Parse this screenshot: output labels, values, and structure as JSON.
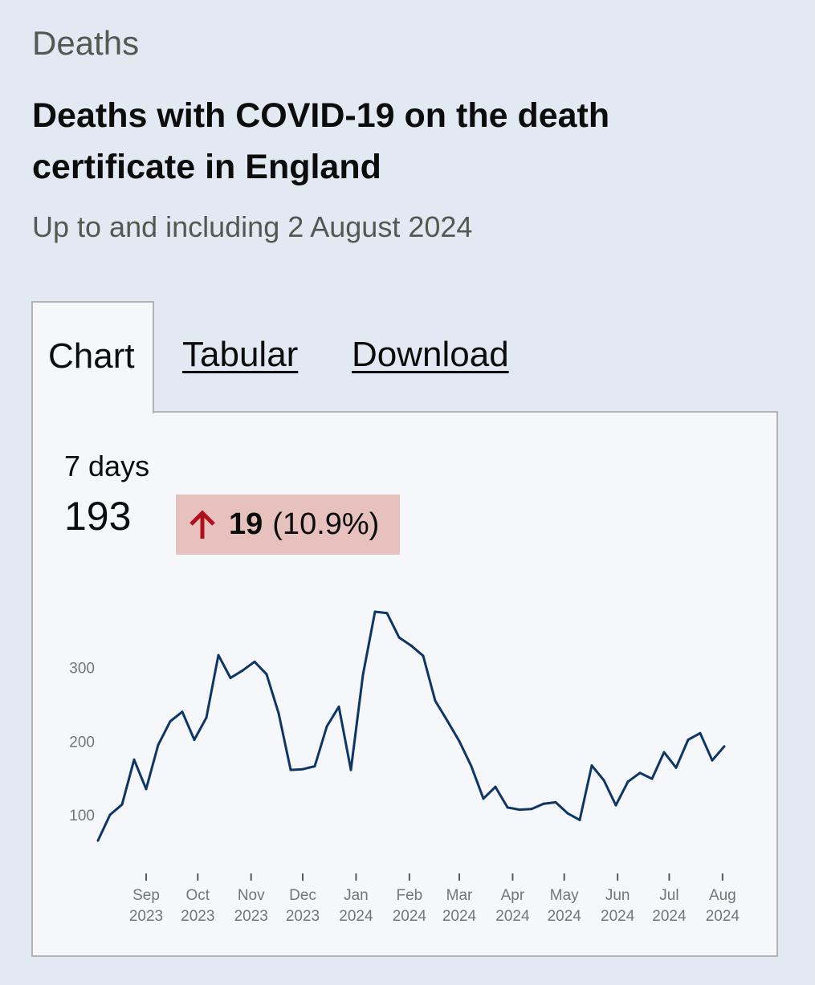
{
  "header": {
    "caption": "Deaths",
    "title": "Deaths with COVID-19 on the death certificate in England",
    "subtitle": "Up to and including 2 August 2024"
  },
  "tabs": [
    {
      "label": "Chart",
      "active": true
    },
    {
      "label": "Tabular",
      "active": false
    },
    {
      "label": "Download",
      "active": false
    }
  ],
  "summary": {
    "period_label": "7 days",
    "value": "193",
    "change": "19",
    "change_pct": "(10.9%)",
    "direction": "up",
    "badge_color": "#e6c1bd",
    "arrow_color": "#b10e1e"
  },
  "chart_data": {
    "type": "line",
    "ylim": [
      40,
      400
    ],
    "yticks": [
      "100",
      "200",
      "300"
    ],
    "line_color": "#0d3666",
    "x_ticks": [
      {
        "date": "2023-09-01",
        "month": "Sep",
        "year": "2023"
      },
      {
        "date": "2023-10-01",
        "month": "Oct",
        "year": "2023"
      },
      {
        "date": "2023-11-01",
        "month": "Nov",
        "year": "2023"
      },
      {
        "date": "2023-12-01",
        "month": "Dec",
        "year": "2023"
      },
      {
        "date": "2024-01-01",
        "month": "Jan",
        "year": "2024"
      },
      {
        "date": "2024-02-01",
        "month": "Feb",
        "year": "2024"
      },
      {
        "date": "2024-03-01",
        "month": "Mar",
        "year": "2024"
      },
      {
        "date": "2024-04-01",
        "month": "Apr",
        "year": "2024"
      },
      {
        "date": "2024-05-01",
        "month": "May",
        "year": "2024"
      },
      {
        "date": "2024-06-01",
        "month": "Jun",
        "year": "2024"
      },
      {
        "date": "2024-07-01",
        "month": "Jul",
        "year": "2024"
      },
      {
        "date": "2024-08-01",
        "month": "Aug",
        "year": "2024"
      }
    ],
    "x": [
      "2023-08-04",
      "2023-08-11",
      "2023-08-18",
      "2023-08-25",
      "2023-09-01",
      "2023-09-08",
      "2023-09-15",
      "2023-09-22",
      "2023-09-29",
      "2023-10-06",
      "2023-10-13",
      "2023-10-20",
      "2023-10-27",
      "2023-11-03",
      "2023-11-10",
      "2023-11-17",
      "2023-11-24",
      "2023-12-01",
      "2023-12-08",
      "2023-12-15",
      "2023-12-22",
      "2023-12-29",
      "2024-01-05",
      "2024-01-12",
      "2024-01-19",
      "2024-01-26",
      "2024-02-02",
      "2024-02-09",
      "2024-02-16",
      "2024-02-23",
      "2024-03-01",
      "2024-03-08",
      "2024-03-15",
      "2024-03-22",
      "2024-03-29",
      "2024-04-05",
      "2024-04-12",
      "2024-04-19",
      "2024-04-26",
      "2024-05-03",
      "2024-05-10",
      "2024-05-17",
      "2024-05-24",
      "2024-05-31",
      "2024-06-07",
      "2024-06-14",
      "2024-06-21",
      "2024-06-28",
      "2024-07-05",
      "2024-07-12",
      "2024-07-19",
      "2024-07-26",
      "2024-08-02"
    ],
    "values": [
      65,
      100,
      114,
      175,
      135,
      195,
      227,
      240,
      202,
      232,
      317,
      286,
      296,
      308,
      291,
      238,
      161,
      162,
      166,
      220,
      247,
      161,
      290,
      376,
      374,
      341,
      330,
      316,
      255,
      228,
      200,
      166,
      122,
      138,
      110,
      107,
      108,
      115,
      117,
      102,
      93,
      167,
      147,
      113,
      145,
      157,
      149,
      185,
      164,
      202,
      211,
      174,
      193
    ]
  }
}
